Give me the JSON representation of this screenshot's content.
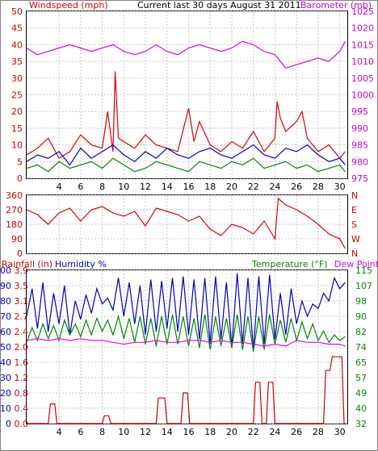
{
  "chart_data": [
    {
      "type": "line",
      "title": "Current last 30 days August 31 2011",
      "left_axis": {
        "label": "Windspeed (mph)",
        "ticks": [
          0,
          5,
          10,
          15,
          20,
          25,
          30,
          35,
          40,
          45,
          50
        ],
        "range": [
          0,
          50
        ],
        "color": "#cc0000"
      },
      "right_axis": {
        "label": "Barometer (mb)",
        "ticks": [
          975,
          980,
          985,
          990,
          995,
          1000,
          1005,
          1010,
          1015,
          1020,
          1025
        ],
        "range": [
          975,
          1025
        ],
        "color": "#cc00cc"
      },
      "x_ticks": [
        "4",
        "6",
        "8",
        "10",
        "12",
        "14",
        "16",
        "18",
        "20",
        "22",
        "24",
        "26",
        "28",
        "30"
      ],
      "grid": true,
      "series": [
        {
          "axis": "right",
          "color": "#dd00dd",
          "x": [
            1,
            2,
            3,
            4,
            5,
            6,
            7,
            8,
            9,
            10,
            11,
            12,
            13,
            14,
            15,
            16,
            17,
            18,
            19,
            20,
            21,
            22,
            23,
            24,
            25,
            26,
            27,
            28,
            29,
            30,
            30.5
          ],
          "values": [
            1014,
            1012,
            1013,
            1014,
            1015,
            1014,
            1013,
            1014,
            1015,
            1013,
            1012,
            1013,
            1015,
            1013,
            1012,
            1014,
            1015,
            1014,
            1013,
            1014,
            1016,
            1015,
            1013,
            1012,
            1008,
            1009,
            1010,
            1011,
            1010,
            1013,
            1016
          ]
        },
        {
          "axis": "left",
          "color": "#dd0000",
          "x": [
            1,
            2,
            3,
            4,
            5,
            6,
            7,
            8,
            8.5,
            9,
            9.2,
            9.5,
            10,
            11,
            12,
            13,
            14,
            15,
            16,
            16.5,
            17,
            18,
            19,
            20,
            21,
            22,
            23,
            24,
            24.2,
            24.5,
            25,
            26,
            26.5,
            27,
            28,
            29,
            30,
            30.5
          ],
          "values": [
            7,
            9,
            12,
            6,
            8,
            13,
            10,
            9,
            20,
            8,
            32,
            12,
            11,
            9,
            13,
            10,
            9,
            8,
            21,
            11,
            17,
            10,
            8,
            11,
            9,
            14,
            8,
            12,
            23,
            18,
            14,
            17,
            20,
            12,
            8,
            10,
            6,
            8
          ]
        },
        {
          "axis": "left",
          "color": "#0000cc",
          "x": [
            1,
            2,
            3,
            4,
            5,
            6,
            7,
            8,
            9,
            10,
            11,
            12,
            13,
            14,
            15,
            16,
            17,
            18,
            19,
            20,
            21,
            22,
            23,
            24,
            25,
            26,
            27,
            28,
            29,
            30,
            30.5
          ],
          "values": [
            5,
            7,
            6,
            8,
            4,
            9,
            6,
            8,
            10,
            7,
            5,
            8,
            6,
            9,
            7,
            6,
            8,
            9,
            7,
            6,
            8,
            10,
            7,
            6,
            9,
            8,
            10,
            7,
            5,
            6,
            4
          ]
        },
        {
          "axis": "left",
          "color": "#008800",
          "x": [
            1,
            2,
            3,
            4,
            5,
            6,
            7,
            8,
            9,
            10,
            11,
            12,
            13,
            14,
            15,
            16,
            17,
            18,
            19,
            20,
            21,
            22,
            23,
            24,
            25,
            26,
            27,
            28,
            29,
            30,
            30.5
          ],
          "values": [
            3,
            4,
            2,
            5,
            3,
            4,
            5,
            3,
            6,
            4,
            2,
            3,
            5,
            4,
            3,
            2,
            5,
            4,
            3,
            5,
            4,
            6,
            3,
            4,
            5,
            3,
            4,
            2,
            3,
            4,
            2
          ]
        }
      ]
    },
    {
      "type": "line",
      "left_axis": {
        "ticks": [
          0,
          90,
          180,
          270,
          360
        ],
        "range": [
          0,
          360
        ],
        "color": "#cc0000"
      },
      "right_axis": {
        "ticks": [
          "N",
          "W",
          "S",
          "E",
          "N"
        ],
        "color": "#cc0000"
      },
      "grid": true,
      "series": [
        {
          "color": "#dd0000",
          "x": [
            1,
            2,
            3,
            4,
            5,
            6,
            7,
            8,
            9,
            10,
            11,
            12,
            13,
            14,
            15,
            16,
            17,
            18,
            19,
            20,
            21,
            22,
            23,
            24,
            24.3,
            25,
            26,
            27,
            28,
            29,
            30,
            30.5
          ],
          "values": [
            270,
            240,
            180,
            250,
            280,
            200,
            270,
            290,
            250,
            230,
            260,
            170,
            280,
            260,
            240,
            200,
            230,
            150,
            110,
            180,
            160,
            120,
            200,
            90,
            340,
            300,
            270,
            230,
            180,
            120,
            90,
            30
          ]
        }
      ]
    },
    {
      "type": "line",
      "axes_labels": [
        "Rainfall (in)",
        "Humidity %",
        "Temperature (°F)",
        "Dew Point"
      ],
      "rain_axis": {
        "ticks": [
          "0.0",
          "0.4",
          "0.8",
          "1.2",
          "1.6",
          "2.0",
          "2.4",
          "2.7",
          "3.1",
          "3.5",
          "3.9"
        ],
        "range": [
          0,
          3.9
        ],
        "color": "#cc0000"
      },
      "humidity_axis": {
        "ticks": [
          0,
          10,
          20,
          30,
          40,
          50,
          60,
          70,
          80,
          90,
          100
        ],
        "range": [
          0,
          100
        ],
        "color": "#0000cc"
      },
      "temp_axis": {
        "ticks": [
          32,
          40,
          49,
          57,
          65,
          74,
          82,
          90,
          98,
          107,
          115
        ],
        "range": [
          32,
          115
        ],
        "color": "#008800"
      },
      "x_ticks": [
        "4",
        "6",
        "8",
        "10",
        "12",
        "14",
        "16",
        "18",
        "20",
        "22",
        "24",
        "26",
        "28",
        "30"
      ],
      "grid": true,
      "series": [
        {
          "name": "Rainfall (in)",
          "axis": "rain",
          "color": "#cc0000",
          "x": [
            1,
            3,
            3.2,
            3.6,
            3.8,
            8,
            8.2,
            8.6,
            8.8,
            13,
            13.2,
            13.8,
            14,
            15.3,
            15.5,
            15.9,
            16.1,
            22,
            22.2,
            22.6,
            22.8,
            23.2,
            23.4,
            23.8,
            24,
            28.5,
            28.7,
            29.1,
            29.3,
            30.2,
            30.4,
            30.5
          ],
          "values": [
            0,
            0,
            0.5,
            0.5,
            0,
            0,
            0.2,
            0.2,
            0,
            0,
            0.65,
            0.65,
            0,
            0,
            0.78,
            0.78,
            0,
            0,
            1.05,
            1.05,
            0,
            0,
            1.05,
            1.05,
            0,
            0,
            1.35,
            1.35,
            1.7,
            1.7,
            0,
            0
          ]
        },
        {
          "name": "Humidity %",
          "axis": "humidity",
          "color": "#0000bb",
          "x": [
            1,
            1.5,
            2,
            2.5,
            3,
            3.5,
            4,
            4.5,
            5,
            5.5,
            6,
            6.5,
            7,
            7.5,
            8,
            8.5,
            9,
            9.5,
            10,
            10.5,
            11,
            11.5,
            12,
            12.5,
            13,
            13.5,
            14,
            14.5,
            15,
            15.5,
            16,
            16.5,
            17,
            17.5,
            18,
            18.5,
            19,
            19.5,
            20,
            20.5,
            21,
            21.5,
            22,
            22.5,
            23,
            23.5,
            24,
            24.5,
            25,
            25.5,
            26,
            26.5,
            27,
            27.5,
            28,
            28.5,
            29,
            29.5,
            30,
            30.5
          ],
          "values": [
            70,
            88,
            62,
            92,
            60,
            85,
            65,
            90,
            58,
            80,
            68,
            84,
            72,
            88,
            78,
            82,
            74,
            95,
            70,
            92,
            65,
            90,
            58,
            94,
            60,
            93,
            62,
            95,
            60,
            96,
            58,
            94,
            55,
            95,
            52,
            96,
            55,
            92,
            50,
            98,
            52,
            95,
            48,
            96,
            52,
            97,
            55,
            85,
            58,
            88,
            65,
            80,
            70,
            78,
            75,
            85,
            80,
            95,
            88,
            92
          ]
        },
        {
          "name": "Temperature (°F)",
          "axis": "temp",
          "color": "#008800",
          "x": [
            1,
            1.5,
            2,
            2.5,
            3,
            3.5,
            4,
            4.5,
            5,
            5.5,
            6,
            6.5,
            7,
            7.5,
            8,
            8.5,
            9,
            9.5,
            10,
            10.5,
            11,
            11.5,
            12,
            12.5,
            13,
            13.5,
            14,
            14.5,
            15,
            15.5,
            16,
            16.5,
            17,
            17.5,
            18,
            18.5,
            19,
            19.5,
            20,
            20.5,
            21,
            21.5,
            22,
            22.5,
            23,
            23.5,
            24,
            24.5,
            25,
            25.5,
            26,
            26.5,
            27,
            27.5,
            28,
            28.5,
            29,
            29.5,
            30,
            30.5
          ],
          "values": [
            76,
            84,
            77,
            86,
            78,
            85,
            77,
            88,
            80,
            86,
            79,
            88,
            80,
            89,
            82,
            88,
            80,
            90,
            78,
            89,
            76,
            90,
            75,
            89,
            74,
            90,
            75,
            91,
            75,
            90,
            74,
            89,
            73,
            91,
            72,
            90,
            74,
            89,
            73,
            91,
            72,
            90,
            71,
            90,
            72,
            91,
            75,
            88,
            76,
            89,
            77,
            87,
            78,
            86,
            77,
            82,
            76,
            80,
            77,
            79
          ]
        },
        {
          "name": "Dew Point",
          "axis": "temp",
          "color": "#ee00ee",
          "x": [
            1,
            2,
            3,
            4,
            5,
            6,
            7,
            8,
            9,
            10,
            11,
            12,
            13,
            14,
            15,
            16,
            17,
            18,
            19,
            20,
            21,
            22,
            23,
            24,
            25,
            26,
            27,
            28,
            29,
            30,
            30.5
          ],
          "values": [
            77,
            78,
            77,
            78,
            77,
            78,
            77,
            77,
            76,
            75,
            76,
            76,
            77,
            76,
            76,
            77,
            77,
            76,
            77,
            76,
            76,
            75,
            74,
            75,
            74,
            77,
            76,
            76,
            75,
            75,
            74
          ]
        }
      ]
    }
  ]
}
